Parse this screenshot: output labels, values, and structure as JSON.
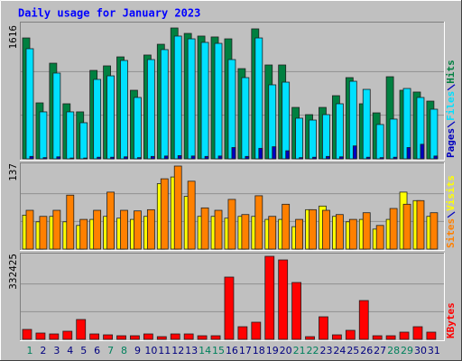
{
  "chart_data": [
    {
      "type": "bar",
      "title": "Daily usage for January 2023",
      "ylim": [
        0,
        1616
      ],
      "yticks": [
        1616
      ],
      "grid": true,
      "series": [
        {
          "name": "Hits",
          "color": "#008040",
          "values": [
            1493,
            691,
            1181,
            680,
            580,
            1092,
            1148,
            1259,
            847,
            1282,
            1415,
            1616,
            1549,
            1516,
            1505,
            1482,
            1114,
            1605,
            1159,
            1159,
            635,
            546,
            635,
            780,
            1003,
            680,
            568,
            1014,
            847,
            825,
            713
          ]
        },
        {
          "name": "Files",
          "color": "#00e0ff",
          "values": [
            1360,
            580,
            1059,
            580,
            446,
            981,
            1025,
            1215,
            758,
            1226,
            1349,
            1516,
            1482,
            1438,
            1426,
            1226,
            1003,
            1493,
            914,
            947,
            502,
            479,
            546,
            680,
            958,
            858,
            424,
            491,
            869,
            758,
            613
          ]
        },
        {
          "name": "Pages",
          "color": "#0000c0",
          "values": [
            30,
            15,
            25,
            10,
            10,
            20,
            20,
            25,
            15,
            30,
            35,
            40,
            35,
            30,
            35,
            140,
            30,
            130,
            150,
            100,
            15,
            20,
            30,
            25,
            160,
            20,
            15,
            20,
            140,
            180,
            35
          ]
        }
      ]
    },
    {
      "type": "bar",
      "ylim": [
        0,
        137
      ],
      "yticks": [
        137
      ],
      "grid": true,
      "series": [
        {
          "name": "Visits",
          "color": "#ffff00",
          "values": [
            56,
            45,
            54,
            45,
            39,
            49,
            54,
            51,
            49,
            54,
            108,
            119,
            87,
            54,
            54,
            51,
            54,
            54,
            49,
            49,
            37,
            65,
            71,
            54,
            45,
            49,
            33,
            49,
            94,
            80,
            54
          ]
        },
        {
          "name": "Sites",
          "color": "#ff8000",
          "values": [
            64,
            54,
            64,
            89,
            49,
            64,
            94,
            64,
            63,
            65,
            116,
            137,
            112,
            68,
            64,
            82,
            57,
            88,
            54,
            74,
            49,
            65,
            64,
            57,
            49,
            60,
            39,
            67,
            74,
            80,
            60
          ]
        }
      ]
    },
    {
      "type": "bar",
      "ylim": [
        0,
        332425
      ],
      "yticks": [
        332425
      ],
      "grid": true,
      "categories": [
        "1",
        "2",
        "3",
        "4",
        "5",
        "6",
        "7",
        "8",
        "9",
        "10",
        "11",
        "12",
        "13",
        "14",
        "15",
        "16",
        "17",
        "18",
        "19",
        "20",
        "21",
        "22",
        "23",
        "24",
        "25",
        "26",
        "27",
        "28",
        "29",
        "30",
        "31"
      ],
      "category_colors": [
        "#00805c",
        "#00007f",
        "#00007f",
        "#00007f",
        "#00007f",
        "#00007f",
        "#00805c",
        "#00805c",
        "#00007f",
        "#00007f",
        "#00007f",
        "#00007f",
        "#00007f",
        "#00805c",
        "#00805c",
        "#00007f",
        "#00007f",
        "#00007f",
        "#00007f",
        "#00007f",
        "#00805c",
        "#00805c",
        "#00007f",
        "#00007f",
        "#00007f",
        "#00007f",
        "#00007f",
        "#00805c",
        "#00805c",
        "#00007f",
        "#00007f"
      ],
      "series": [
        {
          "name": "KBytes",
          "color": "#ff0000",
          "values": [
            39746,
            25293,
            21680,
            32520,
            79493,
            21680,
            18067,
            14453,
            14453,
            21680,
            10840,
            21680,
            21680,
            14453,
            14453,
            249319,
            50586,
            68653,
            332425,
            317972,
            227648,
            10840,
            90333,
            18067,
            36133,
            155373,
            14453,
            14453,
            28906,
            50586,
            28906
          ]
        }
      ]
    }
  ]
}
